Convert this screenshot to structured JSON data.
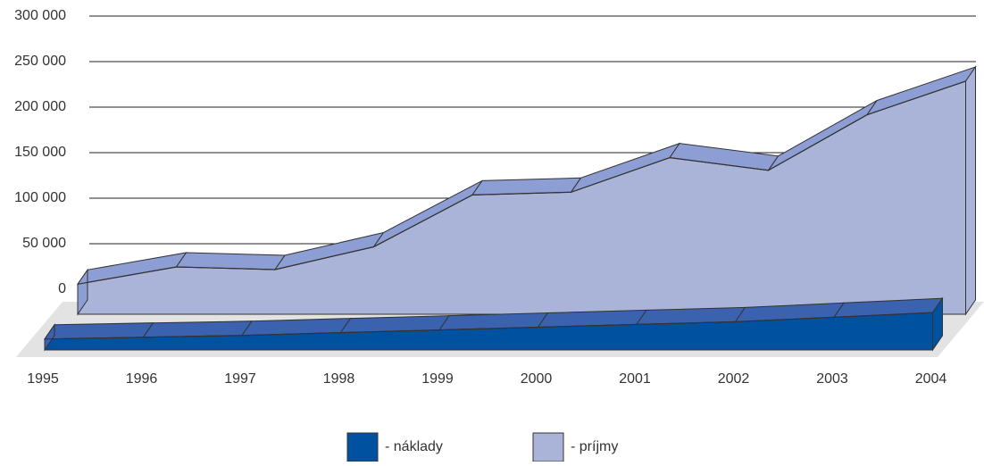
{
  "chart_data": {
    "type": "area3d",
    "categories": [
      "1995",
      "1996",
      "1997",
      "1998",
      "1999",
      "2000",
      "2001",
      "2002",
      "2003",
      "2004"
    ],
    "series": [
      {
        "name": "- náklady",
        "color": "#0052a0",
        "values": [
          12000,
          14000,
          16000,
          19000,
          22000,
          25000,
          28000,
          31000,
          36000,
          41000
        ]
      },
      {
        "name": "- príjmy",
        "color": "#aab4d9",
        "values": [
          33000,
          52000,
          49000,
          74000,
          131000,
          134000,
          172000,
          158000,
          219000,
          256000
        ]
      }
    ],
    "ylim": [
      0,
      300000
    ],
    "yticks": [
      {
        "value": 0,
        "label": "0"
      },
      {
        "value": 50000,
        "label": "50 000"
      },
      {
        "value": 100000,
        "label": "100 000"
      },
      {
        "value": 150000,
        "label": "150 000"
      },
      {
        "value": 200000,
        "label": "200 000"
      },
      {
        "value": 250000,
        "label": "250 000"
      },
      {
        "value": 300000,
        "label": "300 000"
      }
    ],
    "grid": true
  }
}
